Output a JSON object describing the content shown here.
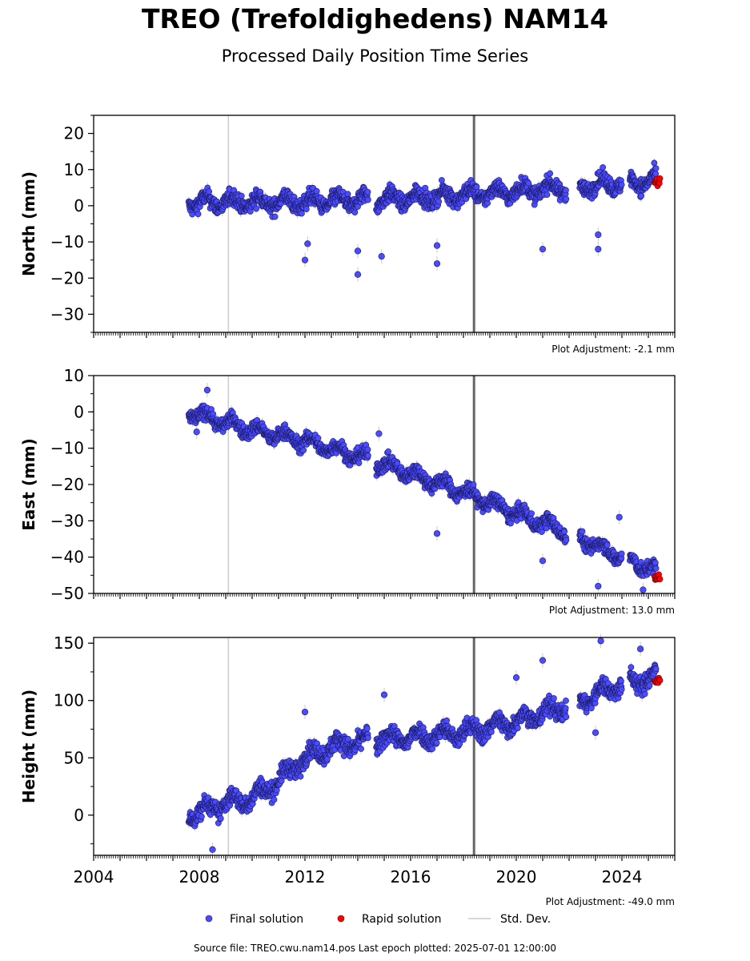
{
  "title": "TREO (Trefoldighedens) NAM14",
  "subtitle": "Processed Daily Position Time Series",
  "source_line": "Source file: TREO.cwu.nam14.pos  Last epoch plotted: 2025-07-01 12:00:00",
  "legend": {
    "final": "Final solution",
    "rapid": "Rapid solution",
    "std": "Std. Dev."
  },
  "colors": {
    "final": "#4b4bff",
    "rapid": "#ff0000",
    "std": "#c8c8c8",
    "event_major": "#666666",
    "event_minor": "#cccccc"
  },
  "chart_data": [
    {
      "type": "scatter",
      "ylabel": "North (mm)",
      "ylim": [
        -35,
        25
      ],
      "yticks": [
        20,
        10,
        0,
        -10,
        -20,
        -30
      ],
      "xlim": [
        2004,
        2026
      ],
      "adjustment": "Plot Adjustment: -2.1 mm",
      "events": [
        {
          "x": 2009.1,
          "style": "minor"
        },
        {
          "x": 2018.4,
          "style": "major"
        }
      ],
      "series": [
        {
          "name": "Final solution",
          "segments": [
            [
              2007.6,
              2014.4
            ],
            [
              2014.7,
              2021.9
            ],
            [
              2022.4,
              2024.0
            ],
            [
              2024.3,
              2025.3
            ]
          ],
          "trend": {
            "x": [
              2007.6,
              2012,
              2016,
              2020,
              2025.3
            ],
            "y": [
              1,
              1,
              2,
              4,
              7
            ]
          },
          "scatter": 2,
          "outliers": [
            [
              2012.0,
              -15
            ],
            [
              2012.1,
              -10.5
            ],
            [
              2014.0,
              -19
            ],
            [
              2014.0,
              -12.5
            ],
            [
              2014.9,
              -14
            ],
            [
              2017.0,
              -16
            ],
            [
              2017.0,
              -11
            ],
            [
              2021.0,
              -12
            ],
            [
              2023.1,
              -12
            ],
            [
              2023.1,
              -8
            ]
          ]
        },
        {
          "name": "Rapid solution",
          "x_start": 2025.3,
          "x_end": 2025.5,
          "y": 6.5
        }
      ]
    },
    {
      "type": "scatter",
      "ylabel": "East (mm)",
      "ylim": [
        -50,
        10
      ],
      "yticks": [
        10,
        0,
        -10,
        -20,
        -30,
        -40,
        -50
      ],
      "xlim": [
        2004,
        2026
      ],
      "adjustment": "Plot Adjustment: 13.0 mm",
      "events": [
        {
          "x": 2009.1,
          "style": "minor"
        },
        {
          "x": 2018.4,
          "style": "major"
        }
      ],
      "series": [
        {
          "name": "Final solution",
          "segments": [
            [
              2007.6,
              2014.4
            ],
            [
              2014.7,
              2021.9
            ],
            [
              2022.4,
              2024.0
            ],
            [
              2024.3,
              2025.3
            ]
          ],
          "trend": {
            "x": [
              2007.6,
              2010,
              2012,
              2014.4,
              2016,
              2018,
              2020,
              2021.9,
              2024,
              2025.3
            ],
            "y": [
              0,
              -5,
              -8,
              -13,
              -17,
              -22,
              -28,
              -33,
              -40,
              -44
            ]
          },
          "scatter": 1.8,
          "outliers": [
            [
              2008.3,
              6
            ],
            [
              2007.9,
              -5.5
            ],
            [
              2014.8,
              -6
            ],
            [
              2017.0,
              -33.5
            ],
            [
              2021.0,
              -41
            ],
            [
              2023.1,
              -48
            ],
            [
              2023.9,
              -29
            ],
            [
              2024.8,
              -49
            ]
          ]
        },
        {
          "name": "Rapid solution",
          "x_start": 2025.3,
          "x_end": 2025.5,
          "y": -45.5
        }
      ]
    },
    {
      "type": "scatter",
      "ylabel": "Height (mm)",
      "ylim": [
        -35,
        155
      ],
      "yticks": [
        150,
        100,
        50,
        0
      ],
      "xlim": [
        2004,
        2026
      ],
      "xticks": [
        2004,
        2008,
        2012,
        2016,
        2020,
        2024
      ],
      "adjustment": "Plot Adjustment: -49.0 mm",
      "events": [
        {
          "x": 2009.1,
          "style": "minor"
        },
        {
          "x": 2018.4,
          "style": "major"
        }
      ],
      "series": [
        {
          "name": "Final solution",
          "segments": [
            [
              2007.6,
              2014.4
            ],
            [
              2014.7,
              2021.9
            ],
            [
              2022.4,
              2024.0
            ],
            [
              2024.3,
              2025.3
            ]
          ],
          "trend": {
            "x": [
              2007.6,
              2009,
              2010,
              2011,
              2012,
              2013,
              2014.4,
              2016,
              2018,
              2020,
              2021.9,
              2023,
              2024,
              2025.3
            ],
            "y": [
              0,
              10,
              15,
              30,
              50,
              60,
              65,
              68,
              72,
              82,
              95,
              105,
              115,
              120
            ]
          },
          "scatter": 7,
          "outliers": [
            [
              2008.5,
              -30
            ],
            [
              2012.0,
              90
            ],
            [
              2015.0,
              105
            ],
            [
              2020.0,
              120
            ],
            [
              2021.0,
              135
            ],
            [
              2023.2,
              152
            ],
            [
              2023.0,
              72
            ],
            [
              2024.7,
              145
            ]
          ]
        },
        {
          "name": "Rapid solution",
          "x_start": 2025.3,
          "x_end": 2025.5,
          "y": 117
        }
      ]
    }
  ]
}
